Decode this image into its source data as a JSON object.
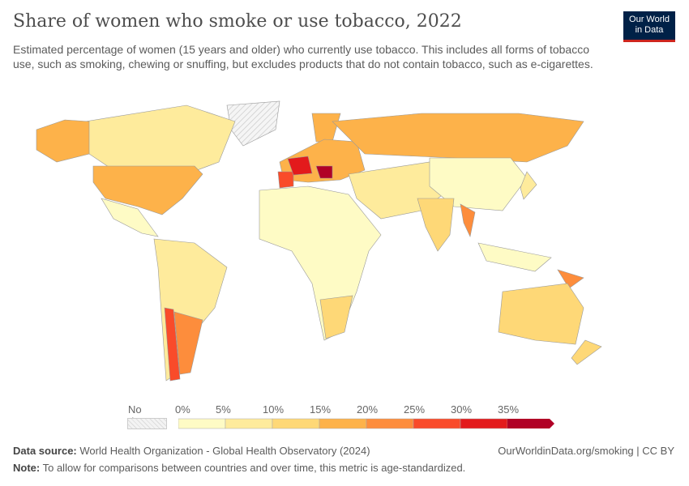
{
  "title": "Share of women who smoke or use tobacco, 2022",
  "subtitle": "Estimated percentage of women (15 years and older) who currently use tobacco. This includes all forms of tobacco use, such as smoking, chewing or snuffing, but excludes products that do not contain tobacco, such as e-cigarettes.",
  "logo": {
    "line1": "Our World",
    "line2": "in Data"
  },
  "legend": {
    "no_data": "No data",
    "ticks": [
      "0%",
      "5%",
      "10%",
      "15%",
      "20%",
      "25%",
      "30%",
      "35%"
    ],
    "colors": [
      "#fefbc5",
      "#feeb9c",
      "#fed877",
      "#fdb24a",
      "#fd8d3c",
      "#f94b2a",
      "#e31a1c",
      "#b10026"
    ]
  },
  "footer": {
    "source_label": "Data source:",
    "source": "World Health Organization - Global Health Observatory (2024)",
    "url": "OurWorldinData.org/smoking | CC BY",
    "note_label": "Note:",
    "note": "To allow for comparisons between countries and over time, this metric is age-standardized."
  }
}
